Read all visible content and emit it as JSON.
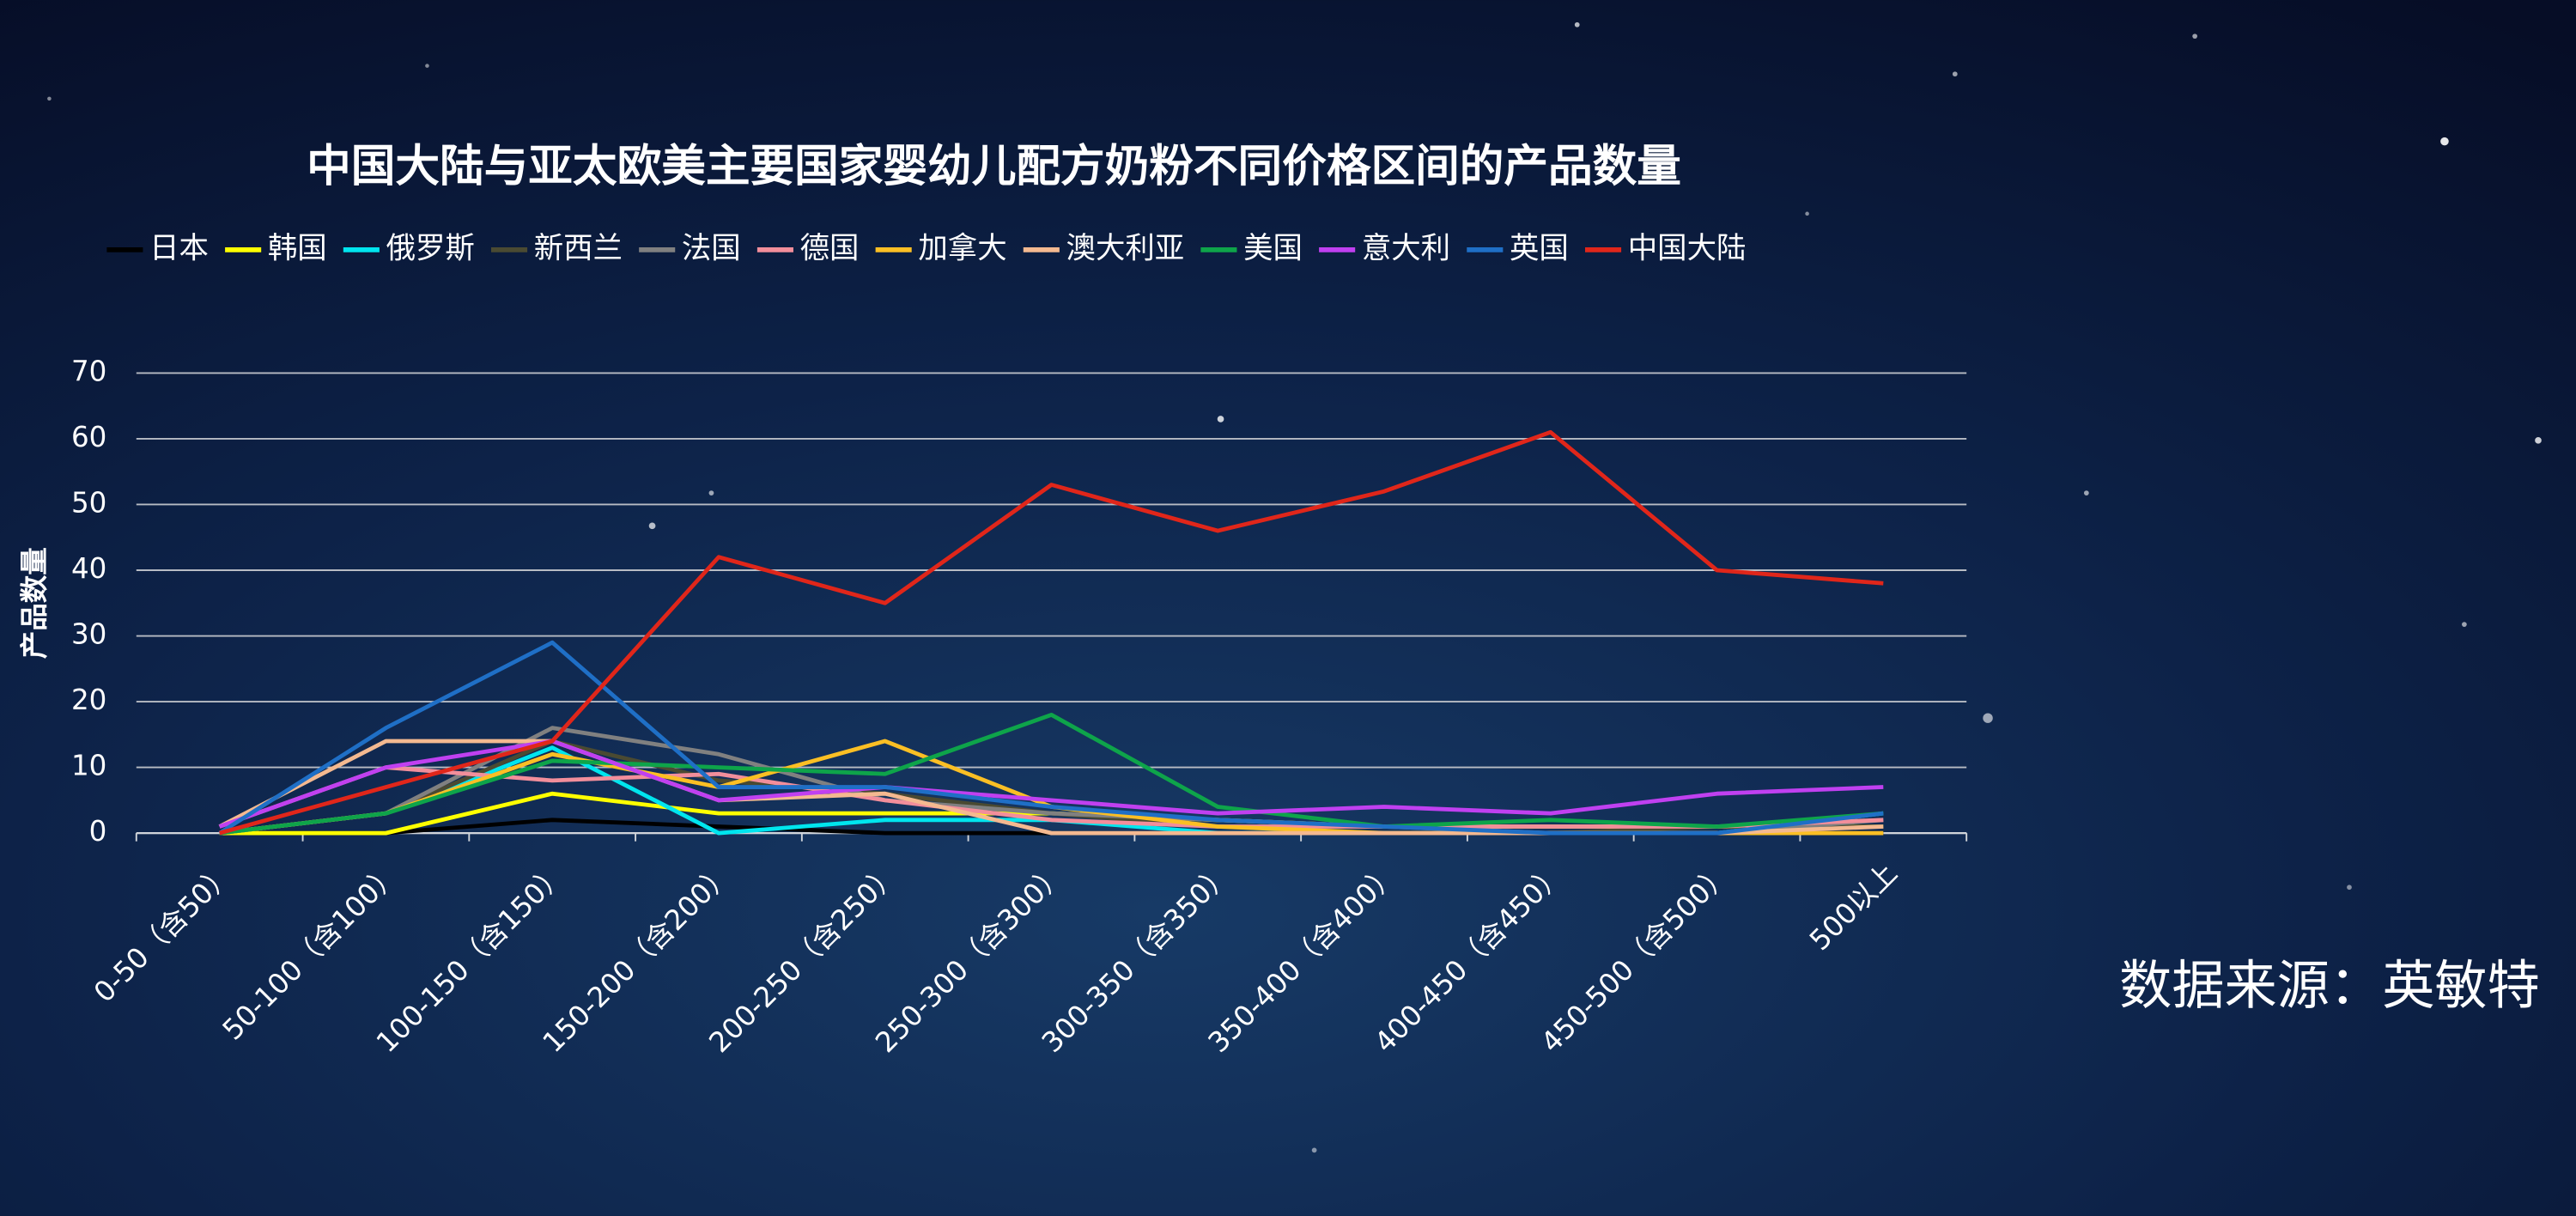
{
  "chart_data": {
    "type": "line",
    "title": "中国大陆与亚太欧美主要国家婴幼儿配方奶粉不同价格区间的产品数量",
    "y_label": "产品数量",
    "source": "数据来源：英敏特",
    "categories": [
      "0-50（含50）",
      "50-100（含100）",
      "100-150（含150）",
      "150-200（含200）",
      "200-250（含250）",
      "250-300（含300）",
      "300-350（含350）",
      "350-400（含400）",
      "400-450（含450）",
      "450-500（含500）",
      "500以上"
    ],
    "ylim": [
      0,
      70
    ],
    "yticks": [
      0,
      10,
      20,
      30,
      40,
      50,
      60,
      70
    ],
    "grid": true,
    "legend": "top",
    "series": [
      {
        "name": "日本",
        "color": "#000000",
        "values": [
          0,
          0,
          2,
          1,
          0,
          0,
          0,
          0,
          0,
          0,
          0
        ]
      },
      {
        "name": "韩国",
        "color": "#ffff00",
        "values": [
          0,
          0,
          6,
          3,
          3,
          3,
          2,
          1,
          1,
          1,
          1
        ]
      },
      {
        "name": "俄罗斯",
        "color": "#00e5ee",
        "values": [
          0,
          3,
          13,
          0,
          2,
          2,
          0,
          0,
          0,
          0,
          3
        ]
      },
      {
        "name": "新西兰",
        "color": "#4a4a32",
        "values": [
          0,
          3,
          14,
          8,
          6,
          3,
          1,
          0,
          0,
          1,
          1
        ]
      },
      {
        "name": "法国",
        "color": "#808080",
        "values": [
          0,
          3,
          16,
          12,
          5,
          3,
          2,
          1,
          0,
          0,
          2
        ]
      },
      {
        "name": "德国",
        "color": "#f28e9b",
        "values": [
          1,
          10,
          8,
          9,
          5,
          2,
          1,
          1,
          1,
          1,
          2
        ]
      },
      {
        "name": "加拿大",
        "color": "#fbbf24",
        "values": [
          0,
          3,
          12,
          7,
          14,
          4,
          1,
          0,
          0,
          0,
          0
        ]
      },
      {
        "name": "澳大利亚",
        "color": "#f4b990",
        "values": [
          1,
          14,
          14,
          5,
          6,
          0,
          0,
          0,
          0,
          0,
          1
        ]
      },
      {
        "name": "美国",
        "color": "#0ea44a",
        "values": [
          0,
          3,
          11,
          10,
          9,
          18,
          4,
          1,
          2,
          1,
          3
        ]
      },
      {
        "name": "意大利",
        "color": "#c040f0",
        "values": [
          1,
          10,
          14,
          5,
          7,
          5,
          3,
          4,
          3,
          6,
          7
        ]
      },
      {
        "name": "英国",
        "color": "#1f6fc6",
        "values": [
          0,
          16,
          29,
          7,
          7,
          4,
          2,
          1,
          0,
          0,
          3
        ]
      },
      {
        "name": "中国大陆",
        "color": "#e0261a",
        "values": [
          0,
          7,
          14,
          42,
          35,
          53,
          46,
          52,
          61,
          40,
          38
        ]
      }
    ]
  }
}
